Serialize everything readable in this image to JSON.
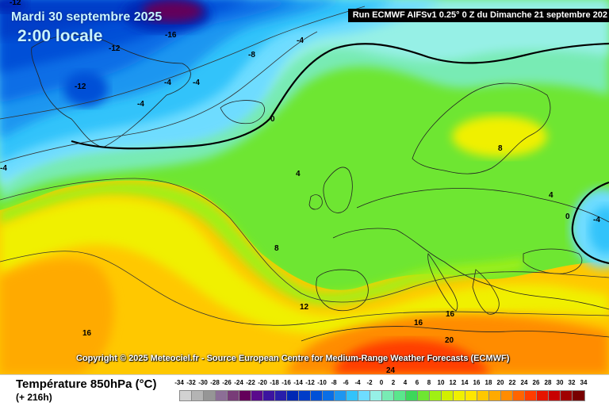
{
  "header": {
    "date": "Mardi 30 septembre 2025",
    "time": "2:00 locale",
    "run": "Run ECMWF AIFSv1 0.25° 0 Z du Dimanche 21 septembre 202"
  },
  "copyright": "Copyright © 2025 Meteociel.fr - Source European Centre for Medium-Range Weather Forecasts (ECMWF)",
  "footer": {
    "variable": "Température 850hPa (°C)",
    "lead": "(+ 216h)"
  },
  "legend": {
    "ticks": [
      -34,
      -32,
      -30,
      -28,
      -26,
      -24,
      -22,
      -20,
      -18,
      -16,
      -14,
      -12,
      -10,
      -8,
      -6,
      -4,
      -2,
      0,
      2,
      4,
      6,
      8,
      10,
      12,
      14,
      16,
      18,
      20,
      22,
      24,
      26,
      28,
      30,
      32,
      34
    ],
    "colors": [
      "#d2d2d2",
      "#b4b4b4",
      "#969696",
      "#8c6e96",
      "#783c78",
      "#64005a",
      "#5a0a8c",
      "#3c14a0",
      "#281eaa",
      "#0028b4",
      "#003cc8",
      "#0050d7",
      "#0a6ee6",
      "#1e96f0",
      "#32c3fa",
      "#6edcff",
      "#96f0e6",
      "#78ebb4",
      "#5ae68c",
      "#3cd75a",
      "#6ee632",
      "#a0f014",
      "#d2f000",
      "#f0f000",
      "#ffe600",
      "#ffc800",
      "#ffaa00",
      "#ff8c00",
      "#ff6400",
      "#ff3c00",
      "#e61400",
      "#c80000",
      "#a00000",
      "#780000"
    ]
  },
  "isolines": [
    {
      "label": "-12"
    },
    {
      "label": "-16"
    },
    {
      "label": "-12"
    },
    {
      "label": "-12"
    },
    {
      "label": "-8"
    },
    {
      "label": "-4"
    },
    {
      "label": "-4"
    },
    {
      "label": "-4"
    },
    {
      "label": "-4"
    },
    {
      "label": "-4"
    },
    {
      "label": "0"
    },
    {
      "label": "4"
    },
    {
      "label": "4"
    },
    {
      "label": "8"
    },
    {
      "label": "8"
    },
    {
      "label": "0"
    },
    {
      "label": "-4"
    },
    {
      "label": "12"
    },
    {
      "label": "16"
    },
    {
      "label": "16"
    },
    {
      "label": "16"
    },
    {
      "label": "20"
    },
    {
      "label": "24"
    }
  ]
}
